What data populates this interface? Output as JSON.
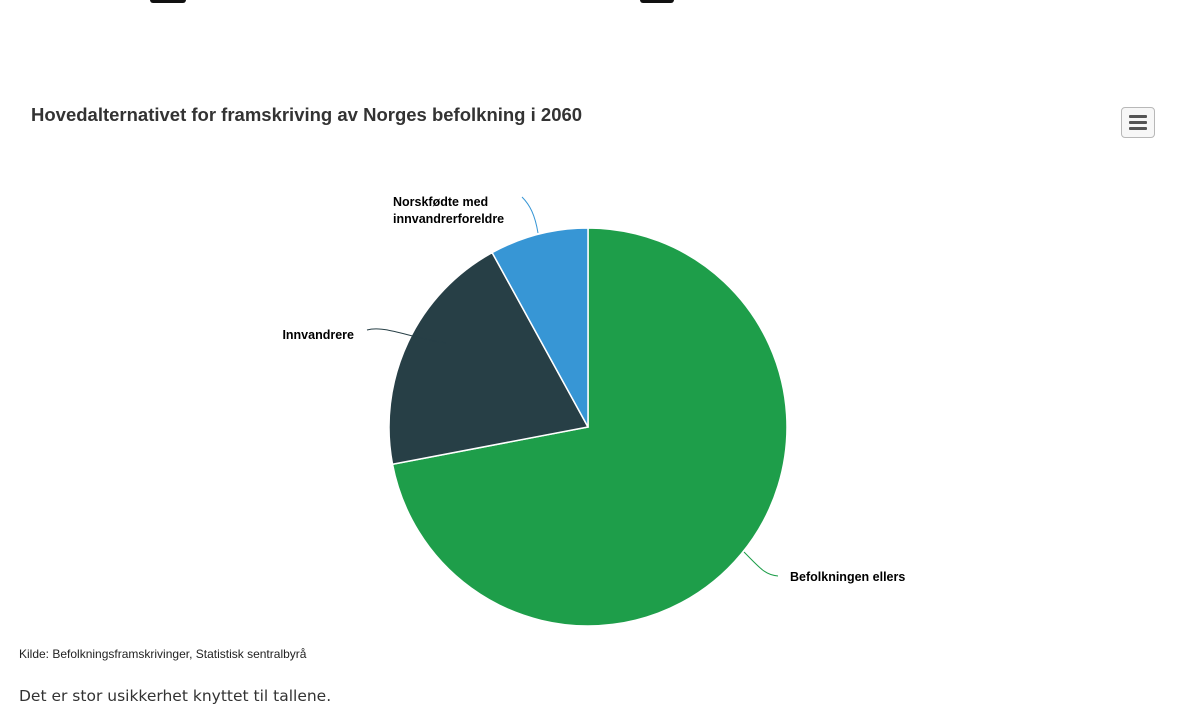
{
  "chart_data": {
    "type": "pie",
    "title": "Hovedalternativet for framskriving av Norges befolkning i 2060",
    "slices": [
      {
        "name": "Befolkningen ellers",
        "value": 72,
        "color": "#1e9e4a"
      },
      {
        "name": "Innvandrere",
        "value": 20,
        "color": "#273f46"
      },
      {
        "name": "Norskfødte med innvandrerforeldre",
        "label_lines": [
          "Norskfødte med",
          "innvandrerforeldre"
        ],
        "value": 8,
        "color": "#3796d5"
      }
    ],
    "legend": "none",
    "data_labels": "outside"
  },
  "toolbar": {
    "menu_icon": "hamburger-menu-icon"
  },
  "footer": {
    "source": "Kilde: Befolkningsframskrivinger, Statistisk sentralbyrå",
    "note": "Det er stor usikkerhet knyttet til tallene."
  }
}
